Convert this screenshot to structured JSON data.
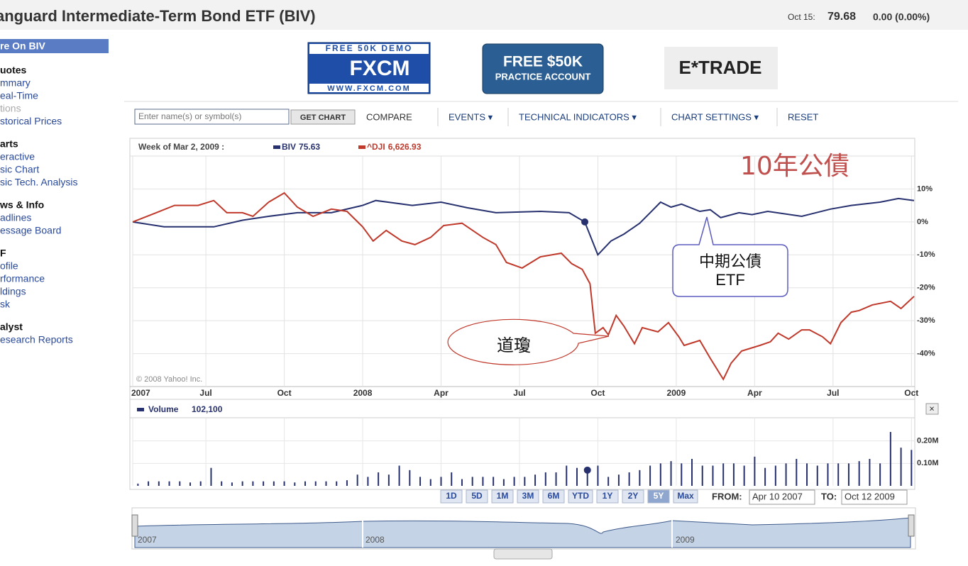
{
  "header": {
    "title": "anguard Intermediate-Term Bond ETF (BIV)",
    "date": "Oct 15:",
    "price": "79.68",
    "change": "0.00 (0.00%)"
  },
  "sidebar": {
    "heading": "re On BIV",
    "groups": [
      {
        "title": "uotes",
        "links": [
          "mmary",
          "eal-Time",
          "tions",
          "storical Prices"
        ]
      },
      {
        "title": "arts",
        "links": [
          "eractive",
          "sic Chart",
          "sic Tech. Analysis"
        ]
      },
      {
        "title": "ws & Info",
        "links": [
          "adlines",
          "essage Board"
        ]
      },
      {
        "title": "F",
        "links": [
          "ofile",
          "rformance",
          "ldings",
          "sk"
        ]
      },
      {
        "title": "alyst",
        "links": [
          "esearch Reports"
        ]
      }
    ]
  },
  "ads": {
    "fxcm_top": "FREE 50K DEMO",
    "fxcm_logo": "FXCM",
    "fxcm_url": "WWW.FXCM.COM",
    "practice_big": "FREE $50K",
    "practice_small": "PRACTICE ACCOUNT",
    "etrade": "E*TRADE"
  },
  "toolbar": {
    "placeholder": "Enter name(s) or symbol(s)",
    "get_chart": "GET CHART",
    "compare": "COMPARE",
    "events": "EVENTS ▾",
    "indicators": "TECHNICAL INDICATORS ▾",
    "settings": "CHART SETTINGS ▾",
    "reset": "RESET"
  },
  "chart_data": [
    {
      "type": "line",
      "legend_date": "Week of Mar 2, 2009 :",
      "copyright": "© 2008 Yahoo! Inc.",
      "xlim": [
        3.2,
        33.1
      ],
      "ylim": [
        -50,
        20
      ],
      "xticks": [
        {
          "value": 3.2,
          "label": "2007"
        },
        {
          "value": 6,
          "label": "Jul"
        },
        {
          "value": 9,
          "label": "Oct"
        },
        {
          "value": 12,
          "label": "2008"
        },
        {
          "value": 15,
          "label": "Apr"
        },
        {
          "value": 18,
          "label": "Jul"
        },
        {
          "value": 21,
          "label": "Oct"
        },
        {
          "value": 24,
          "label": "2009"
        },
        {
          "value": 27,
          "label": "Apr"
        },
        {
          "value": 30,
          "label": "Jul"
        },
        {
          "value": 33,
          "label": "Oct"
        }
      ],
      "yticks": [
        {
          "value": 10,
          "label": "10%"
        },
        {
          "value": 0,
          "label": "0%"
        },
        {
          "value": -10,
          "label": "-10%"
        },
        {
          "value": -20,
          "label": "-20%"
        },
        {
          "value": -30,
          "label": "-30%"
        },
        {
          "value": -40,
          "label": "-40%"
        }
      ],
      "grid": true,
      "series": [
        {
          "name": "BIV",
          "value_label": "75.63",
          "color": "#27316f",
          "x": [
            3.2,
            4.4,
            5.7,
            6.3,
            7.4,
            8.4,
            9.5,
            10.8,
            12.0,
            12.5,
            13.9,
            15.0,
            16.0,
            17.1,
            18.8,
            19.9,
            20.5,
            21.0,
            21.5,
            22.0,
            22.6,
            23.0,
            23.4,
            23.8,
            24.2,
            24.9,
            25.3,
            25.7,
            26.4,
            26.9,
            27.5,
            28.8,
            29.9,
            30.7,
            31.8,
            32.5,
            33.1
          ],
          "values": [
            0,
            -1.5,
            -1.5,
            -1.5,
            0.5,
            1.7,
            2.8,
            2.8,
            5,
            6.5,
            5,
            6,
            4.3,
            2.8,
            3.2,
            2.8,
            0,
            -10,
            -5.8,
            -3.7,
            -0.4,
            2.8,
            6,
            4.5,
            5.4,
            3.2,
            3.7,
            1.3,
            2.8,
            2.2,
            3.2,
            1.7,
            3.9,
            5,
            6,
            7.1,
            6.5
          ],
          "marker_index": 16
        },
        {
          "name": "^DJI",
          "value_label": "6,626.93",
          "color": "#c0392b",
          "x": [
            3.2,
            4.1,
            4.8,
            5.7,
            6.3,
            6.8,
            7.4,
            7.8,
            8.4,
            9.0,
            9.5,
            10.1,
            10.8,
            11.4,
            12.0,
            12.4,
            12.9,
            13.5,
            14.0,
            14.6,
            15.1,
            15.8,
            16.6,
            17.1,
            17.5,
            18.1,
            18.8,
            19.6,
            20.0,
            20.4,
            20.7,
            20.9,
            21.2,
            21.4,
            21.7,
            22.0,
            22.4,
            22.7,
            23.3,
            23.7,
            24.1,
            24.3,
            24.9,
            25.3,
            25.8,
            26.1,
            26.5,
            27.2,
            27.6,
            27.9,
            28.3,
            28.8,
            29.1,
            29.6,
            29.9,
            30.3,
            30.7,
            31.0,
            31.5,
            32.2,
            32.6,
            33.1
          ],
          "values": [
            0,
            2.8,
            5,
            5,
            6.5,
            2.8,
            2.8,
            1.7,
            6,
            8.8,
            4.5,
            1.7,
            3.9,
            3.2,
            -1.5,
            -5.8,
            -2.6,
            -5.8,
            -6.9,
            -4.7,
            -1.1,
            -0.4,
            -4.7,
            -6.9,
            -12.3,
            -14,
            -10.6,
            -9.5,
            -12.7,
            -14.4,
            -18.8,
            -33.8,
            -32.1,
            -34.3,
            -28.4,
            -31.7,
            -37,
            -32.1,
            -33.4,
            -30.6,
            -34.9,
            -37.5,
            -36,
            -41.4,
            -47.8,
            -42.9,
            -39.2,
            -37.5,
            -36.4,
            -33.8,
            -35.6,
            -32.8,
            -32.8,
            -34.9,
            -37,
            -30.6,
            -27.4,
            -26.9,
            -25.2,
            -24.1,
            -26.3,
            -22.6
          ]
        }
      ],
      "annotations": {
        "bond10": "10年公債",
        "biv_line1": "中期公債",
        "biv_line2": "ETF",
        "dji": "道瓊"
      }
    },
    {
      "type": "bar",
      "name": "Volume",
      "value_label": "102,100",
      "color": "#27316f",
      "xlim": [
        3.2,
        33.1
      ],
      "ylim": [
        0,
        0.3
      ],
      "yticks": [
        {
          "value": 0.2,
          "label": "0.20M"
        },
        {
          "value": 0.1,
          "label": "0.10M"
        }
      ],
      "x": [
        3.4,
        3.8,
        4.2,
        4.6,
        5.0,
        5.4,
        5.8,
        6.2,
        6.6,
        7.0,
        7.4,
        7.8,
        8.2,
        8.6,
        9.0,
        9.4,
        9.8,
        10.2,
        10.6,
        11.0,
        11.4,
        11.8,
        12.2,
        12.6,
        13.0,
        13.4,
        13.8,
        14.2,
        14.6,
        15.0,
        15.4,
        15.8,
        16.2,
        16.6,
        17.0,
        17.4,
        17.8,
        18.2,
        18.6,
        19.0,
        19.4,
        19.8,
        20.2,
        20.6,
        21.0,
        21.4,
        21.8,
        22.2,
        22.6,
        23.0,
        23.4,
        23.8,
        24.2,
        24.6,
        25.0,
        25.4,
        25.8,
        26.2,
        26.6,
        27.0,
        27.4,
        27.8,
        28.2,
        28.6,
        29.0,
        29.4,
        29.8,
        30.2,
        30.6,
        31.0,
        31.4,
        31.8,
        32.2,
        32.6,
        33.0
      ],
      "values": [
        0.01,
        0.02,
        0.02,
        0.02,
        0.02,
        0.015,
        0.02,
        0.08,
        0.02,
        0.015,
        0.02,
        0.02,
        0.02,
        0.02,
        0.02,
        0.015,
        0.02,
        0.02,
        0.02,
        0.02,
        0.025,
        0.05,
        0.04,
        0.06,
        0.05,
        0.09,
        0.07,
        0.04,
        0.03,
        0.04,
        0.06,
        0.03,
        0.04,
        0.04,
        0.04,
        0.03,
        0.04,
        0.04,
        0.05,
        0.06,
        0.06,
        0.09,
        0.08,
        0.07,
        0.09,
        0.04,
        0.05,
        0.06,
        0.07,
        0.09,
        0.1,
        0.11,
        0.1,
        0.12,
        0.09,
        0.09,
        0.1,
        0.1,
        0.09,
        0.13,
        0.08,
        0.09,
        0.1,
        0.12,
        0.1,
        0.09,
        0.1,
        0.1,
        0.1,
        0.11,
        0.12,
        0.1,
        0.24,
        0.17,
        0.16
      ],
      "marker_index": 43
    }
  ],
  "range": {
    "buttons": [
      "1D",
      "5D",
      "1M",
      "3M",
      "6M",
      "YTD",
      "1Y",
      "2Y",
      "5Y",
      "Max"
    ],
    "active": 8,
    "from_label": "FROM:",
    "from": "Apr 10 2007",
    "to_label": "TO:",
    "to": "Oct 12 2009"
  },
  "navigator": {
    "labels": [
      "2007",
      "2008",
      "2009"
    ]
  },
  "close": "×"
}
